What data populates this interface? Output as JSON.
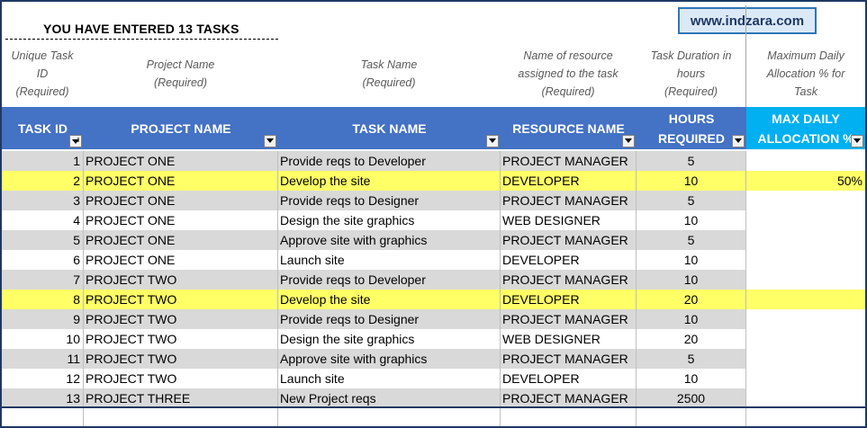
{
  "summary": "YOU HAVE ENTERED 13 TASKS",
  "weblink": "www.indzara.com",
  "hints": {
    "task_id": "Unique Task\nID\n(Required)",
    "project_name": "Project Name\n(Required)",
    "task_name": "Task Name\n(Required)",
    "resource_name": "Name of resource\nassigned to the task\n(Required)",
    "hours_required": "Task Duration in\nhours\n(Required)",
    "max_daily_allocation": "Maximum Daily\nAllocation % for\nTask"
  },
  "columns": {
    "task_id": "TASK ID",
    "project_name": "PROJECT NAME",
    "task_name": "TASK NAME",
    "resource_name": "RESOURCE NAME",
    "hours_required": "HOURS\nREQUIRED",
    "max_daily_allocation": "MAX DAILY\nALLOCATION %"
  },
  "rows": [
    {
      "id": "1",
      "project": "PROJECT ONE",
      "task": "Provide reqs to Developer",
      "resource": "PROJECT MANAGER",
      "hours": "5",
      "alloc": ""
    },
    {
      "id": "2",
      "project": "PROJECT ONE",
      "task": "Develop the site",
      "resource": "DEVELOPER",
      "hours": "10",
      "alloc": "50%"
    },
    {
      "id": "3",
      "project": "PROJECT ONE",
      "task": "Provide reqs to Designer",
      "resource": "PROJECT MANAGER",
      "hours": "5",
      "alloc": ""
    },
    {
      "id": "4",
      "project": "PROJECT ONE",
      "task": "Design the site graphics",
      "resource": "WEB DESIGNER",
      "hours": "10",
      "alloc": ""
    },
    {
      "id": "5",
      "project": "PROJECT ONE",
      "task": "Approve site with graphics",
      "resource": "PROJECT MANAGER",
      "hours": "5",
      "alloc": ""
    },
    {
      "id": "6",
      "project": "PROJECT ONE",
      "task": "Launch site",
      "resource": "DEVELOPER",
      "hours": "10",
      "alloc": ""
    },
    {
      "id": "7",
      "project": "PROJECT TWO",
      "task": "Provide reqs to Developer",
      "resource": "PROJECT MANAGER",
      "hours": "10",
      "alloc": ""
    },
    {
      "id": "8",
      "project": "PROJECT TWO",
      "task": "Develop the site",
      "resource": "DEVELOPER",
      "hours": "20",
      "alloc": ""
    },
    {
      "id": "9",
      "project": "PROJECT TWO",
      "task": "Provide reqs to Designer",
      "resource": "PROJECT MANAGER",
      "hours": "10",
      "alloc": ""
    },
    {
      "id": "10",
      "project": "PROJECT TWO",
      "task": "Design the site graphics",
      "resource": "WEB DESIGNER",
      "hours": "20",
      "alloc": ""
    },
    {
      "id": "11",
      "project": "PROJECT TWO",
      "task": "Approve site with graphics",
      "resource": "PROJECT MANAGER",
      "hours": "5",
      "alloc": ""
    },
    {
      "id": "12",
      "project": "PROJECT TWO",
      "task": "Launch site",
      "resource": "DEVELOPER",
      "hours": "10",
      "alloc": ""
    },
    {
      "id": "13",
      "project": "PROJECT THREE",
      "task": "New Project reqs",
      "resource": "PROJECT MANAGER",
      "hours": "2500",
      "alloc": ""
    }
  ],
  "highlighted_rows": [
    "2",
    "8"
  ],
  "colors": {
    "header_blue": "#4472c4",
    "header_cyan": "#00b0f0",
    "highlight": "#ffff66",
    "stripe": "#d9d9d9",
    "frame": "#1f3864"
  },
  "icons": {
    "filter": "filter-dropdown-icon",
    "sort": "sort-ascending-filter-icon"
  }
}
